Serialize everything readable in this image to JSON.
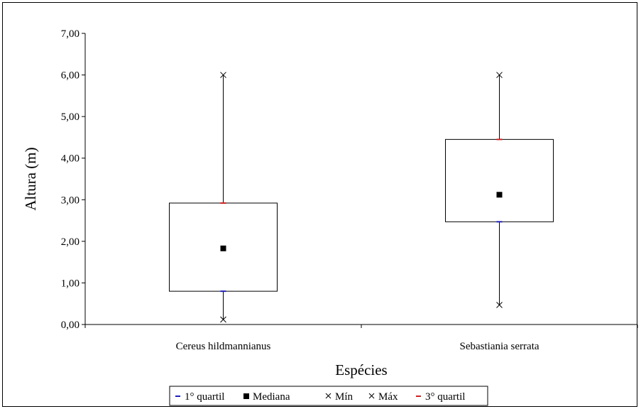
{
  "chart_data": {
    "type": "box",
    "xlabel": "Espécies",
    "ylabel": "Altura (m)",
    "ylim": [
      0,
      7
    ],
    "yticks": [
      0,
      1,
      2,
      3,
      4,
      5,
      6,
      7
    ],
    "ytick_labels": [
      "0,00",
      "1,00",
      "2,00",
      "3,00",
      "4,00",
      "5,00",
      "6,00",
      "7,00"
    ],
    "grid": false,
    "legend_position": "bottom",
    "categories": [
      "Cereus hildmannianus",
      "Sebastiania serrata"
    ],
    "series": [
      {
        "name": "1° quartil",
        "marker": "dash",
        "color": "#1f1fbf",
        "values": [
          0.8,
          2.47
        ]
      },
      {
        "name": "Mediana",
        "marker": "square",
        "color": "#000000",
        "values": [
          1.83,
          3.12
        ]
      },
      {
        "name": "Mín",
        "marker": "x",
        "color": "#000000",
        "values": [
          0.12,
          0.47
        ]
      },
      {
        "name": "Máx",
        "marker": "x",
        "color": "#000000",
        "values": [
          6.0,
          6.0
        ]
      },
      {
        "name": "3° quartil",
        "marker": "dash",
        "color": "#d42020",
        "values": [
          2.92,
          4.45
        ]
      }
    ]
  }
}
